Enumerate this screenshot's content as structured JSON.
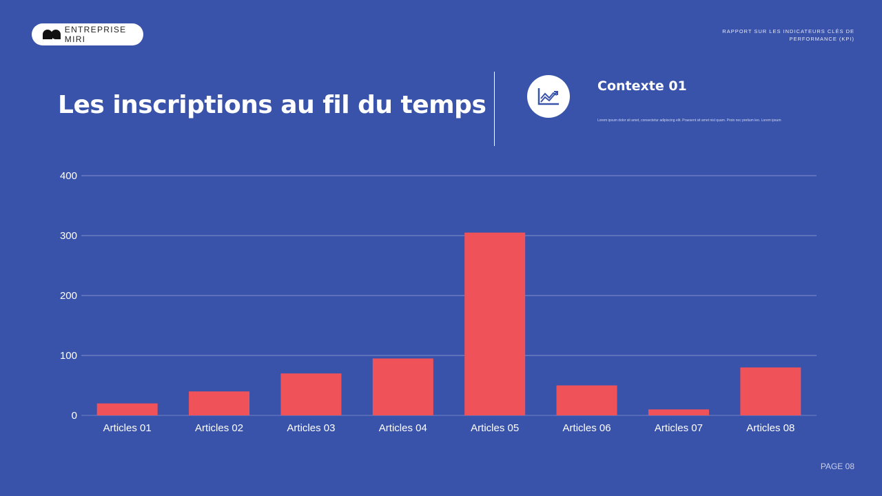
{
  "header": {
    "company": "ENTREPRISE MIRI",
    "report": "RAPPORT SUR LES INDICATEURS CLÉS DE PERFORMANCE (KPI)"
  },
  "title": "Les inscriptions au fil du temps",
  "context": {
    "icon": "line-chart-icon",
    "title": "Contexte 01",
    "text": "Lorem ipsum dolor sit amet, consectetur adipiscing elit. Praesent sit amet nisl quam. Proin nec pretium leo. Lorem ipsum"
  },
  "page": "PAGE 08",
  "colors": {
    "background": "#3a53aa",
    "bar": "#f0525a"
  },
  "chart_data": {
    "type": "bar",
    "categories": [
      "Articles 01",
      "Articles 02",
      "Articles 03",
      "Articles 04",
      "Articles 05",
      "Articles 06",
      "Articles 07",
      "Articles 08"
    ],
    "values": [
      20,
      40,
      70,
      95,
      305,
      50,
      10,
      80
    ],
    "yticks": [
      "0",
      "100",
      "200",
      "300",
      "400"
    ],
    "ylim": [
      0,
      400
    ],
    "grid": true
  }
}
